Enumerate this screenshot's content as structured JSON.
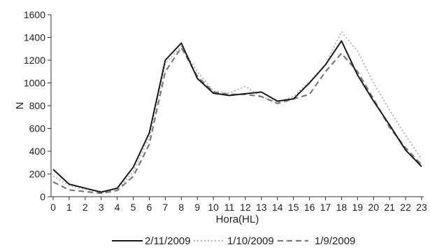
{
  "chart_data": {
    "type": "line",
    "xlabel": "Hora(HL)",
    "ylabel": "N",
    "xlim": [
      0,
      23
    ],
    "ylim": [
      0,
      1600
    ],
    "yticks": [
      0,
      200,
      400,
      600,
      800,
      1000,
      1200,
      1400,
      1600
    ],
    "x": [
      0,
      1,
      2,
      3,
      4,
      5,
      6,
      7,
      8,
      9,
      10,
      11,
      12,
      13,
      14,
      15,
      16,
      17,
      18,
      19,
      20,
      21,
      22,
      23
    ],
    "x_tick_labels": [
      "0",
      "1",
      "2",
      "3",
      "4",
      "5",
      "6",
      "7",
      "8",
      "9",
      "10",
      "11",
      "12",
      "13",
      "14",
      "15",
      "16",
      "17",
      "18",
      "19",
      "20",
      "21",
      "22",
      "23"
    ],
    "grid": false,
    "legend_position": "bottom",
    "series": [
      {
        "name": "2/11/2009",
        "style": "solid",
        "color": "#1a1a1a",
        "values": [
          240,
          110,
          75,
          40,
          75,
          260,
          560,
          1200,
          1350,
          1040,
          910,
          890,
          905,
          920,
          840,
          860,
          1000,
          1160,
          1370,
          1070,
          840,
          630,
          410,
          265
        ]
      },
      {
        "name": "1/10/2009",
        "style": "dotted",
        "color": "#b3b3b3",
        "values": [
          180,
          100,
          65,
          45,
          65,
          220,
          520,
          1170,
          1320,
          1100,
          930,
          910,
          970,
          880,
          830,
          880,
          1010,
          1160,
          1450,
          1280,
          1000,
          760,
          540,
          330
        ]
      },
      {
        "name": "1/9/2009",
        "style": "dashed",
        "color": "#7a7a7a",
        "values": [
          130,
          60,
          45,
          30,
          55,
          180,
          460,
          1100,
          1310,
          1060,
          920,
          900,
          900,
          880,
          820,
          860,
          900,
          1100,
          1260,
          1100,
          860,
          610,
          430,
          280
        ]
      }
    ]
  }
}
